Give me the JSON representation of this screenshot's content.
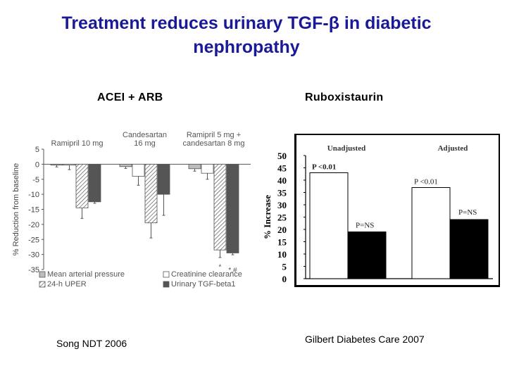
{
  "slide": {
    "title_line1": "Treatment reduces urinary TGF-β in diabetic",
    "title_line2": "nephropathy",
    "left_heading": "ACEI + ARB",
    "right_heading": "Ruboxistaurin",
    "left_citation": "Song NDT 2006",
    "right_citation": "Gilbert Diabetes Care 2007"
  },
  "colors": {
    "title": "#1a1a99",
    "map": "#bdbdbd",
    "creat": "#ffffff",
    "uper": "#e8e8e8",
    "tgf": "#555555",
    "unadjusted": "#ffffff",
    "adjusted": "#000000"
  },
  "chart_data": [
    {
      "type": "bar",
      "ylabel": "% Reduction from baseline",
      "ylim": [
        -35,
        5
      ],
      "yticks": [
        5,
        0,
        -5,
        -10,
        -15,
        -20,
        -25,
        -30,
        -35
      ],
      "groups": [
        "Ramipril 10 mg",
        "Candesartan\n16 mg",
        "Ramipril 5 mg +\ncandesartan 8 mg"
      ],
      "series": [
        {
          "name": "Mean arterial pressure",
          "values": [
            -0.3,
            -0.8,
            -1.5
          ],
          "errors": [
            0.6,
            0.6,
            0.8
          ]
        },
        {
          "name": "Creatinine clearance",
          "values": [
            -0.3,
            -4.0,
            -3.0
          ],
          "errors": [
            1.5,
            3.0,
            2.0
          ]
        },
        {
          "name": "24-h UPER",
          "values": [
            -14.5,
            -19.5,
            -28.5
          ],
          "errors": [
            3.5,
            5.0,
            2.5
          ]
        },
        {
          "name": "Urinary TGF-beta1",
          "values": [
            -12.5,
            -10.0,
            -29.5
          ],
          "errors": [
            0.5,
            7.0,
            0.6
          ]
        }
      ],
      "annotations": [
        "*",
        "*,#"
      ],
      "legend": [
        "Mean arterial pressure",
        "Creatinine clearance",
        "24-h UPER",
        "Urinary TGF-beta1"
      ]
    },
    {
      "type": "bar",
      "ylabel": "% Increase",
      "ylim": [
        0,
        50
      ],
      "yticks": [
        0,
        5,
        10,
        15,
        20,
        25,
        30,
        35,
        40,
        45,
        50
      ],
      "groups": [
        "Unadjusted",
        "Adjusted"
      ],
      "series": [
        {
          "name": "White bar",
          "values": [
            43,
            37
          ]
        },
        {
          "name": "Black bar",
          "values": [
            19,
            24
          ]
        }
      ],
      "annotations": [
        "P <0.01",
        "P=NS",
        "P <0.01",
        "P=NS"
      ]
    }
  ]
}
